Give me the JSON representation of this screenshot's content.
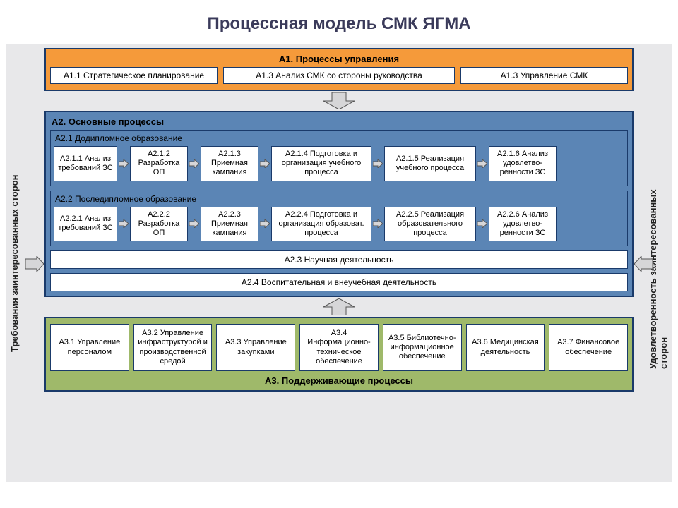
{
  "title": "Процессная модель СМК ЯГМА",
  "colors": {
    "page_bg": "#ffffff",
    "diagram_bg": "#e8e8ea",
    "border": "#1a3a6a",
    "a1_bg": "#f59a3a",
    "a2_bg": "#5b85b5",
    "a3_bg": "#9fb96a",
    "box_bg": "#ffffff",
    "title_color": "#3a3a5a",
    "arrow_fill": "#d6d6d8",
    "arrow_stroke": "#555"
  },
  "side_labels": {
    "left": "Требования заинтересованных сторон",
    "right": "Удовлетворенность заинтересованных сторон"
  },
  "a1": {
    "title": "А1. Процессы управления",
    "boxes": [
      "А1.1 Стратегическое планирование",
      "А1.3 Анализ СМК со стороны руководства",
      "А1.3 Управление СМК"
    ]
  },
  "a2": {
    "title": "А2. Основные процессы",
    "sub1": {
      "title": "А2.1 Додипломное образование",
      "boxes": [
        "А2.1.1 Анализ требований ЗС",
        "А2.1.2 Разработка ОП",
        "А2.1.3 Приемная кампания",
        "А2.1.4 Подготовка и организация учебного процесса",
        "А2.1.5 Реализация учебного процесса",
        "А2.1.6 Анализ удовлетво- ренности ЗС"
      ]
    },
    "sub2": {
      "title": "А2.2 Последипломное образование",
      "boxes": [
        "А2.2.1 Анализ требований ЗС",
        "А2.2.2 Разработка ОП",
        "А2.2.3 Приемная кампания",
        "А2.2.4 Подготовка и организация образоват. процесса",
        "А2.2.5 Реализация образовательного процесса",
        "А2.2.6 Анализ удовлетво- ренности ЗС"
      ]
    },
    "bar1": "А2.3 Научная деятельность",
    "bar2": "А2.4 Воспитательная и внеучебная деятельность"
  },
  "a3": {
    "title": "А3. Поддерживающие процессы",
    "boxes": [
      "А3.1 Управление персоналом",
      "А3.2 Управление инфраструктурой и производственной средой",
      "А3.3 Управление закупками",
      "А3.4 Информационно-техническое обеспечение",
      "А3.5 Библиотечно-информационное обеспечение",
      "А3.6 Медицинская деятельность",
      "А3.7 Финансовое обеспечение"
    ]
  },
  "layout": {
    "a2_box_widths": [
      90,
      82,
      82,
      142,
      130,
      96
    ],
    "big_arrow_w": 40,
    "big_arrow_h": 22,
    "small_arrow_len": 12
  }
}
